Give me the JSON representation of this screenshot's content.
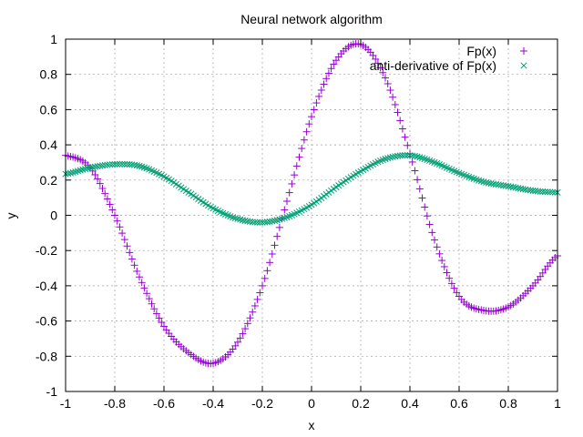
{
  "chart_data": {
    "type": "scatter",
    "title": "Neural network algorithm",
    "xlabel": "x",
    "ylabel": "y",
    "xlim": [
      -1,
      1
    ],
    "ylim": [
      -1,
      1
    ],
    "grid": true,
    "legend_position": "top-right",
    "xticks": [
      "-1",
      "-0.8",
      "-0.6",
      "-0.4",
      "-0.2",
      "0",
      "0.2",
      "0.4",
      "0.6",
      "0.8",
      "1"
    ],
    "yticks": [
      "-1",
      "-0.8",
      "-0.6",
      "-0.4",
      "-0.2",
      "0",
      "0.2",
      "0.4",
      "0.6",
      "0.8",
      "1"
    ],
    "x": [
      -1.0,
      -0.9,
      -0.8,
      -0.7,
      -0.6,
      -0.5,
      -0.4,
      -0.3,
      -0.2,
      -0.1,
      0.0,
      0.1,
      0.2,
      0.3,
      0.4,
      0.5,
      0.6,
      0.7,
      0.8,
      0.9,
      1.0
    ],
    "series": [
      {
        "name": "Fp(x)",
        "marker": "plus",
        "color": "#9400d3",
        "values": [
          0.34,
          0.27,
          0.0,
          -0.35,
          -0.63,
          -0.78,
          -0.84,
          -0.72,
          -0.4,
          0.08,
          0.56,
          0.88,
          0.97,
          0.78,
          0.35,
          -0.14,
          -0.46,
          -0.54,
          -0.52,
          -0.4,
          -0.23
        ]
      },
      {
        "name": "anti-derivative of Fp(x)",
        "marker": "cross",
        "color": "#009e73",
        "values": [
          0.235,
          0.27,
          0.29,
          0.28,
          0.22,
          0.13,
          0.04,
          -0.02,
          -0.04,
          -0.01,
          0.06,
          0.16,
          0.25,
          0.32,
          0.34,
          0.3,
          0.24,
          0.19,
          0.165,
          0.14,
          0.13
        ]
      }
    ]
  }
}
